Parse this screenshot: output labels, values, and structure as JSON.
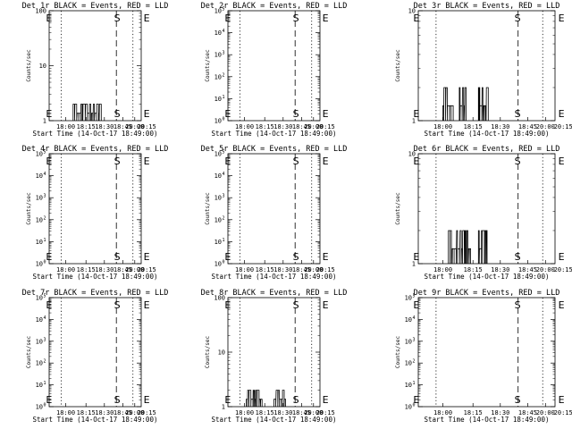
{
  "chart_data": [
    {
      "type": "step",
      "title": "Det 1r BLACK = Events, RED = LLD",
      "ylabel": "Counts/sec",
      "xlabel": "Start Time (14-Oct-17 18:49:00)",
      "yscale": "log",
      "ylim_exp": [
        0,
        2
      ],
      "ytick_style": "plain",
      "yticks": [
        "1",
        "10",
        "100"
      ],
      "x_ticks": [
        "18:00",
        "18:15",
        "18:30",
        "18:45",
        "20:00",
        "20:15"
      ],
      "markers": [
        "E",
        "S",
        "E"
      ],
      "series": [
        {
          "name": "BLACK",
          "color": "#000000",
          "bursts": [
            [
              0.26,
              0.56,
              0.3
            ]
          ],
          "seed": 1
        }
      ]
    },
    {
      "type": "step",
      "title": "Det 2r BLACK = Events, RED = LLD",
      "ylabel": "Counts/sec",
      "xlabel": "Start Time (14-Oct-17 18:49:00)",
      "yscale": "log",
      "ylim_exp": [
        0,
        5
      ],
      "ytick_style": "power",
      "yticks": [
        "0",
        "1",
        "2",
        "3",
        "4",
        "5"
      ],
      "x_ticks": [
        "18:00",
        "18:15",
        "18:30",
        "18:45",
        "20:00",
        "20:15"
      ],
      "markers": [
        "E",
        "S",
        "E"
      ],
      "series": []
    },
    {
      "type": "step",
      "title": "Det 3r BLACK = Events, RED = LLD",
      "ylabel": "Counts/sec",
      "xlabel": "Start Time (14-Oct-17 18:49:00)",
      "yscale": "log",
      "ylim_exp": [
        0,
        1
      ],
      "ytick_style": "plain",
      "yticks": [
        "1",
        "10"
      ],
      "x_ticks": [
        "18:00",
        "18:15",
        "18:30",
        "18:45",
        "20:00",
        "20:15"
      ],
      "markers": [
        "E",
        "S",
        "E"
      ],
      "series": [
        {
          "name": "BLACK",
          "color": "#000000",
          "bursts": [
            [
              0.18,
              0.25,
              0.3
            ],
            [
              0.3,
              0.35,
              0.3
            ],
            [
              0.44,
              0.5,
              0.3
            ]
          ],
          "seed": 3
        }
      ]
    },
    {
      "type": "step",
      "title": "Det 4r BLACK = Events, RED = LLD",
      "ylabel": "Counts/sec",
      "xlabel": "Start Time (14-Oct-17 18:49:00)",
      "yscale": "log",
      "ylim_exp": [
        0,
        5
      ],
      "ytick_style": "power",
      "yticks": [
        "0",
        "1",
        "2",
        "3",
        "4",
        "5"
      ],
      "x_ticks": [
        "18:00",
        "18:15",
        "18:30",
        "18:45",
        "20:00",
        "20:15"
      ],
      "markers": [
        "E",
        "S",
        "E"
      ],
      "series": []
    },
    {
      "type": "step",
      "title": "Det 5r BLACK = Events, RED = LLD",
      "ylabel": "Counts/sec",
      "xlabel": "Start Time (14-Oct-17 18:49:00)",
      "yscale": "log",
      "ylim_exp": [
        0,
        5
      ],
      "ytick_style": "power",
      "yticks": [
        "0",
        "1",
        "2",
        "3",
        "4",
        "5"
      ],
      "x_ticks": [
        "18:00",
        "18:15",
        "18:30",
        "18:45",
        "20:00",
        "20:15"
      ],
      "markers": [
        "E",
        "S",
        "E"
      ],
      "series": []
    },
    {
      "type": "step",
      "title": "Det 6r BLACK = Events, RED = LLD",
      "ylabel": "Counts/sec",
      "xlabel": "Start Time (14-Oct-17 18:49:00)",
      "yscale": "log",
      "ylim_exp": [
        0,
        1
      ],
      "ytick_style": "plain",
      "yticks": [
        "1",
        "10"
      ],
      "x_ticks": [
        "18:00",
        "18:15",
        "18:30",
        "18:45",
        "20:00",
        "20:15"
      ],
      "markers": [
        "E",
        "S",
        "E"
      ],
      "series": [
        {
          "name": "BLACK",
          "color": "#000000",
          "bursts": [
            [
              0.22,
              0.38,
              0.3
            ],
            [
              0.44,
              0.5,
              0.3
            ]
          ],
          "seed": 6
        }
      ]
    },
    {
      "type": "step",
      "title": "Det 7r BLACK = Events, RED = LLD",
      "ylabel": "Counts/sec",
      "xlabel": "Start Time (14-Oct-17 18:49:00)",
      "yscale": "log",
      "ylim_exp": [
        0,
        5
      ],
      "ytick_style": "power",
      "yticks": [
        "0",
        "1",
        "2",
        "3",
        "4",
        "5"
      ],
      "x_ticks": [
        "18:00",
        "18:15",
        "18:30",
        "18:45",
        "20:00",
        "20:15"
      ],
      "markers": [
        "E",
        "S",
        "E"
      ],
      "series": []
    },
    {
      "type": "step",
      "title": "Det 8r BLACK = Events, RED = LLD",
      "ylabel": "Counts/sec",
      "xlabel": "Start Time (14-Oct-17 18:49:00)",
      "yscale": "log",
      "ylim_exp": [
        0,
        2
      ],
      "ytick_style": "plain",
      "yticks": [
        "1",
        "10",
        "100"
      ],
      "x_ticks": [
        "18:00",
        "18:15",
        "18:30",
        "18:45",
        "20:00",
        "20:15"
      ],
      "markers": [
        "E",
        "S",
        "E"
      ],
      "series": [
        {
          "name": "BLACK",
          "color": "#000000",
          "bursts": [
            [
              0.2,
              0.37,
              0.3
            ],
            [
              0.5,
              0.63,
              0.3
            ]
          ],
          "seed": 8
        }
      ]
    },
    {
      "type": "step",
      "title": "Det 9r BLACK = Events, RED = LLD",
      "ylabel": "Counts/sec",
      "xlabel": "Start Time (14-Oct-17 18:49:00)",
      "yscale": "log",
      "ylim_exp": [
        0,
        5
      ],
      "ytick_style": "power",
      "yticks": [
        "0",
        "1",
        "2",
        "3",
        "4",
        "5"
      ],
      "x_ticks": [
        "18:00",
        "18:15",
        "18:30",
        "18:45",
        "20:00",
        "20:15"
      ],
      "markers": [
        "E",
        "S",
        "E"
      ],
      "series": []
    }
  ]
}
